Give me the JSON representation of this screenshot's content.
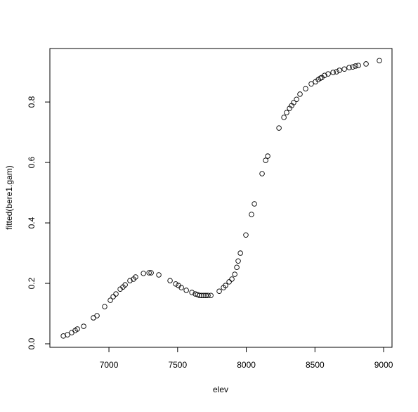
{
  "chart_data": {
    "type": "scatter",
    "x_label": "elev",
    "y_label": "fitted(bere1.gam)",
    "x": [
      6668,
      6698,
      6729,
      6754,
      6770,
      6816,
      6887,
      6913,
      6969,
      7010,
      7031,
      7051,
      7082,
      7102,
      7118,
      7153,
      7179,
      7194,
      7251,
      7292,
      7307,
      7363,
      7445,
      7486,
      7506,
      7527,
      7563,
      7604,
      7629,
      7645,
      7660,
      7675,
      7691,
      7706,
      7721,
      7742,
      7803,
      7834,
      7849,
      7875,
      7895,
      7916,
      7931,
      7941,
      7957,
      7997,
      8038,
      8059,
      8115,
      8141,
      8156,
      8238,
      8274,
      8294,
      8315,
      8330,
      8345,
      8366,
      8391,
      8432,
      8473,
      8504,
      8524,
      8540,
      8550,
      8570,
      8596,
      8632,
      8657,
      8678,
      8714,
      8749,
      8775,
      8795,
      8816,
      8872,
      8969
    ],
    "values": [
      0.026,
      0.03,
      0.037,
      0.044,
      0.049,
      0.058,
      0.086,
      0.093,
      0.123,
      0.144,
      0.156,
      0.165,
      0.181,
      0.188,
      0.195,
      0.209,
      0.214,
      0.221,
      0.233,
      0.235,
      0.235,
      0.228,
      0.209,
      0.198,
      0.193,
      0.186,
      0.177,
      0.17,
      0.165,
      0.163,
      0.16,
      0.16,
      0.16,
      0.16,
      0.16,
      0.16,
      0.174,
      0.186,
      0.193,
      0.205,
      0.214,
      0.23,
      0.253,
      0.274,
      0.3,
      0.36,
      0.428,
      0.463,
      0.563,
      0.607,
      0.621,
      0.714,
      0.749,
      0.765,
      0.779,
      0.788,
      0.798,
      0.809,
      0.826,
      0.844,
      0.86,
      0.867,
      0.874,
      0.879,
      0.881,
      0.888,
      0.893,
      0.898,
      0.9,
      0.905,
      0.909,
      0.914,
      0.916,
      0.919,
      0.921,
      0.926,
      0.937
    ],
    "color": "#000000",
    "xlim": [
      6570,
      9061
    ],
    "ylim": [
      -0.0116,
      0.977
    ],
    "xticks": [
      7000,
      7500,
      8000,
      8500,
      9000
    ],
    "yticks": [
      {
        "value": 0,
        "label": "0.0"
      },
      0.2,
      0.4,
      0.6,
      0.8
    ]
  }
}
